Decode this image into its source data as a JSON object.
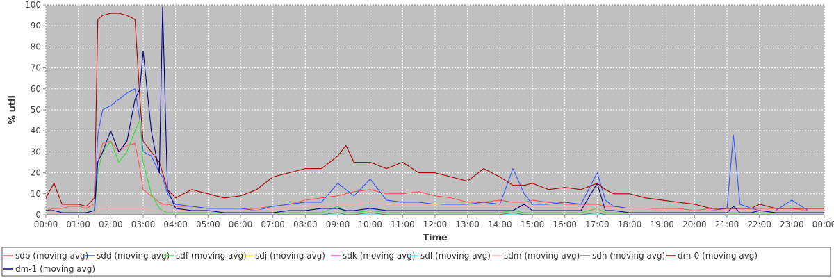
{
  "chart_data": {
    "type": "line",
    "title": "",
    "xlabel": "Time",
    "ylabel": "% util",
    "ylim": [
      0,
      100
    ],
    "yticks": [
      "0",
      "10",
      "20",
      "30",
      "40",
      "50",
      "60",
      "70",
      "80",
      "90",
      "100"
    ],
    "xticks": [
      "00:00",
      "01:00",
      "02:00",
      "03:00",
      "04:00",
      "05:00",
      "06:00",
      "07:00",
      "08:00",
      "09:00",
      "10:00",
      "11:00",
      "12:00",
      "13:00",
      "14:00",
      "15:00",
      "16:00",
      "17:00",
      "18:00",
      "19:00",
      "20:00",
      "21:00",
      "22:00",
      "23:00",
      "00:00"
    ],
    "grid": true,
    "legend_position": "bottom",
    "x": [
      0.0,
      0.25,
      0.5,
      0.75,
      1.0,
      1.25,
      1.5,
      1.6,
      1.75,
      2.0,
      2.25,
      2.5,
      2.75,
      2.9,
      3.0,
      3.25,
      3.5,
      3.6,
      3.75,
      4.0,
      4.5,
      5.0,
      5.5,
      6.0,
      6.5,
      7.0,
      7.5,
      8.0,
      8.5,
      9.0,
      9.25,
      9.5,
      10.0,
      10.5,
      11.0,
      11.5,
      12.0,
      12.5,
      13.0,
      13.5,
      14.0,
      14.4,
      14.75,
      15.0,
      15.5,
      16.0,
      16.5,
      17.0,
      17.25,
      17.5,
      18.0,
      18.5,
      19.0,
      19.5,
      20.0,
      20.5,
      21.0,
      21.2,
      21.4,
      21.75,
      22.0,
      22.5,
      23.0,
      23.5,
      24.0
    ],
    "series": [
      {
        "name": "sdb (moving avg)",
        "color": "#ff5555",
        "values": [
          2,
          3,
          3,
          4,
          4,
          3,
          5,
          25,
          34,
          35,
          30,
          33,
          34,
          22,
          12,
          9,
          6,
          5,
          5,
          4,
          4,
          3,
          3,
          3,
          3,
          4,
          5,
          7,
          8,
          9,
          10,
          11,
          12,
          10,
          10,
          11,
          9,
          8,
          6,
          6,
          7,
          6,
          6,
          7,
          6,
          5,
          5,
          5,
          4,
          4,
          3,
          3,
          3,
          3,
          2,
          3,
          3,
          3,
          3,
          3,
          3,
          3,
          3,
          2,
          2
        ]
      },
      {
        "name": "sdd (moving avg)",
        "color": "#3355ff",
        "values": [
          2,
          2,
          1,
          1,
          1,
          1,
          2,
          38,
          50,
          52,
          55,
          58,
          60,
          45,
          30,
          28,
          20,
          18,
          10,
          5,
          4,
          3,
          3,
          3,
          2,
          4,
          5,
          6,
          6,
          15,
          12,
          9,
          17,
          7,
          6,
          6,
          5,
          5,
          5,
          6,
          5,
          22,
          10,
          5,
          5,
          6,
          5,
          20,
          7,
          4,
          3,
          3,
          2,
          2,
          2,
          2,
          3,
          38,
          5,
          3,
          2,
          2,
          7,
          2,
          2
        ]
      },
      {
        "name": "sdf (moving avg)",
        "color": "#33dd33",
        "values": [
          1,
          1,
          1,
          1,
          1,
          1,
          1,
          20,
          30,
          35,
          25,
          30,
          40,
          45,
          25,
          10,
          3,
          2,
          1,
          1,
          1,
          1,
          1,
          1,
          1,
          1,
          1,
          1,
          1,
          4,
          1,
          1,
          2,
          1,
          1,
          1,
          1,
          1,
          1,
          1,
          1,
          2,
          1,
          1,
          1,
          1,
          1,
          3,
          1,
          1,
          1,
          1,
          1,
          1,
          1,
          1,
          1,
          1,
          1,
          1,
          1,
          1,
          1,
          1,
          1
        ]
      },
      {
        "name": "sdj (moving avg)",
        "color": "#ffee00",
        "values": [
          0,
          0,
          0,
          0,
          0,
          0,
          0,
          0,
          0,
          0,
          0,
          0,
          0,
          0,
          0,
          0,
          0,
          0,
          0,
          0,
          0,
          0,
          0,
          0,
          0,
          0,
          0,
          0,
          0,
          1,
          0,
          0,
          1,
          0,
          0,
          0,
          0,
          0,
          0,
          0,
          0,
          1,
          0,
          0,
          0,
          0,
          0,
          1,
          0,
          0,
          0,
          0,
          0,
          0,
          0,
          0,
          0,
          0,
          0,
          0,
          0,
          0,
          0,
          0,
          0
        ]
      },
      {
        "name": "sdk (moving avg)",
        "color": "#ff44dd",
        "values": [
          0,
          0,
          0,
          0,
          0,
          0,
          0,
          0,
          0,
          0,
          0,
          0,
          0,
          0,
          0,
          0,
          0,
          0,
          0,
          0,
          0,
          0,
          0,
          0,
          0,
          0,
          0,
          0,
          0,
          0,
          0,
          0,
          0,
          0,
          0,
          0,
          0,
          0,
          0,
          0,
          0,
          0,
          0,
          0,
          0,
          0,
          0,
          0,
          0,
          0,
          0,
          0,
          0,
          0,
          0,
          0,
          0,
          0,
          0,
          0,
          0,
          0,
          0,
          0,
          0
        ]
      },
      {
        "name": "sdl (moving avg)",
        "color": "#33ffff",
        "values": [
          0,
          0,
          0,
          0,
          0,
          0,
          0,
          0,
          0,
          0,
          0,
          0,
          0,
          0,
          0,
          0,
          0,
          0,
          0,
          0,
          0,
          0,
          0,
          0,
          0,
          0,
          0,
          0,
          0,
          0,
          0,
          0,
          0,
          0,
          0,
          0,
          0,
          0,
          0,
          0,
          0,
          0,
          0,
          0,
          0,
          0,
          0,
          0,
          0,
          0,
          0,
          0,
          0,
          0,
          0,
          0,
          0,
          0,
          0,
          0,
          0,
          0,
          0,
          0,
          0
        ]
      },
      {
        "name": "sdm (moving avg)",
        "color": "#ffaaaa",
        "values": [
          1,
          1,
          1,
          1,
          1,
          1,
          1,
          2,
          3,
          3,
          3,
          3,
          3,
          3,
          3,
          2,
          2,
          2,
          2,
          2,
          2,
          2,
          2,
          2,
          2,
          3,
          3,
          4,
          4,
          5,
          5,
          5,
          6,
          5,
          5,
          5,
          5,
          4,
          4,
          4,
          4,
          4,
          4,
          4,
          4,
          3,
          3,
          3,
          3,
          3,
          3,
          3,
          2,
          2,
          2,
          2,
          2,
          2,
          2,
          2,
          2,
          2,
          2,
          2,
          2
        ]
      },
      {
        "name": "sdn (moving avg)",
        "color": "#777777",
        "values": [
          0,
          0,
          0,
          0,
          0,
          0,
          0,
          0,
          0,
          0,
          0,
          0,
          0,
          0,
          0,
          0,
          0,
          0,
          0,
          0,
          0,
          0,
          0,
          0,
          0,
          0,
          0,
          0,
          0,
          1,
          0,
          0,
          1,
          0,
          0,
          0,
          0,
          0,
          0,
          0,
          0,
          1,
          0,
          0,
          0,
          0,
          0,
          1,
          0,
          0,
          0,
          0,
          0,
          0,
          0,
          0,
          0,
          0,
          0,
          0,
          0,
          0,
          0,
          0,
          0
        ]
      },
      {
        "name": "dm-0 (moving avg)",
        "color": "#aa0000",
        "values": [
          8,
          15,
          5,
          5,
          5,
          4,
          8,
          93,
          95,
          96,
          96,
          95,
          93,
          55,
          35,
          30,
          25,
          20,
          12,
          8,
          12,
          10,
          8,
          9,
          12,
          18,
          20,
          22,
          22,
          28,
          33,
          25,
          25,
          22,
          25,
          20,
          20,
          18,
          16,
          22,
          18,
          14,
          14,
          15,
          12,
          13,
          12,
          15,
          12,
          10,
          10,
          8,
          7,
          6,
          5,
          3,
          3,
          3,
          3,
          3,
          5,
          3,
          3,
          3,
          3
        ]
      },
      {
        "name": "dm-1 (moving avg)",
        "color": "#000088",
        "values": [
          2,
          2,
          1,
          1,
          1,
          1,
          2,
          25,
          30,
          40,
          30,
          35,
          55,
          60,
          78,
          40,
          20,
          99,
          12,
          3,
          2,
          2,
          1,
          1,
          1,
          1,
          2,
          2,
          3,
          3,
          2,
          2,
          3,
          2,
          2,
          2,
          2,
          2,
          2,
          2,
          2,
          2,
          5,
          2,
          2,
          2,
          2,
          15,
          2,
          2,
          1,
          1,
          1,
          1,
          1,
          1,
          1,
          4,
          1,
          1,
          2,
          1,
          1,
          1,
          1
        ]
      }
    ]
  }
}
